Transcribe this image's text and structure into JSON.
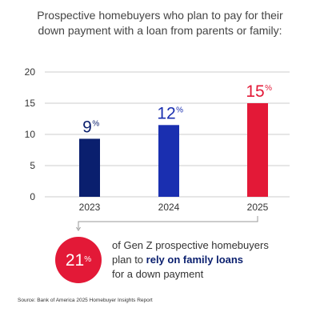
{
  "title_line1": "Prospective homebuyers who plan to pay for their",
  "title_line2": "down payment with a loan from parents or family:",
  "chart_data": {
    "type": "bar",
    "categories": [
      "2023",
      "2024",
      "2025"
    ],
    "values": [
      9.3,
      11.5,
      15
    ],
    "data_labels": [
      "9",
      "12",
      "15"
    ],
    "label_suffix": "%",
    "colors": [
      "#0a1f6e",
      "#1a2fb0",
      "#e31937"
    ],
    "ylim": [
      0,
      20
    ],
    "yticks": [
      0,
      5,
      10,
      15,
      20
    ],
    "grid": true
  },
  "callout": {
    "number": "21",
    "suffix": "%",
    "line1": "of Gen Z prospective homebuyers",
    "line2_prefix": "plan to ",
    "line2_bold": "rely on family loans",
    "line3": "for a down payment"
  },
  "source": "Source: Bank of America 2025 Homebuyer Insights Report",
  "colors": {
    "accent_red": "#e31937",
    "navy": "#0a1f6e",
    "gridline": "#cccccc",
    "bracket": "#999999"
  }
}
